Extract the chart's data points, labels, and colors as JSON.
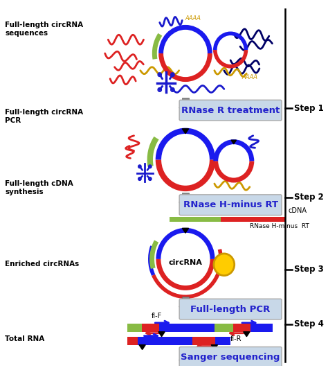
{
  "bg_color": "#ffffff",
  "colors": {
    "red": "#dd2222",
    "blue": "#1a1aee",
    "green": "#88bb44",
    "dark_blue": "#1a1acc",
    "navy": "#000066",
    "gold": "#cc9900",
    "yellow": "#ffcc00",
    "gray_arrow": "#888888",
    "black": "#000000"
  },
  "process_box_color": "#c8d8e8",
  "process_text_color": "#2222cc",
  "process_labels": [
    "RNase R treatment",
    "RNase H-minus RT",
    "Full-length PCR",
    "Sanger sequencing"
  ],
  "step_labels": [
    "Step 1",
    "Step 2",
    "Step 3",
    "Step 4"
  ],
  "left_labels": [
    [
      "Total RNA",
      0.925
    ],
    [
      "Enriched circRNAs",
      0.72
    ],
    [
      "Full-length cDNA\nsynthesis",
      0.51
    ],
    [
      "Full-length circRNA\nPCR",
      0.315
    ],
    [
      "Full-length circRNA\nsequences",
      0.075
    ]
  ]
}
